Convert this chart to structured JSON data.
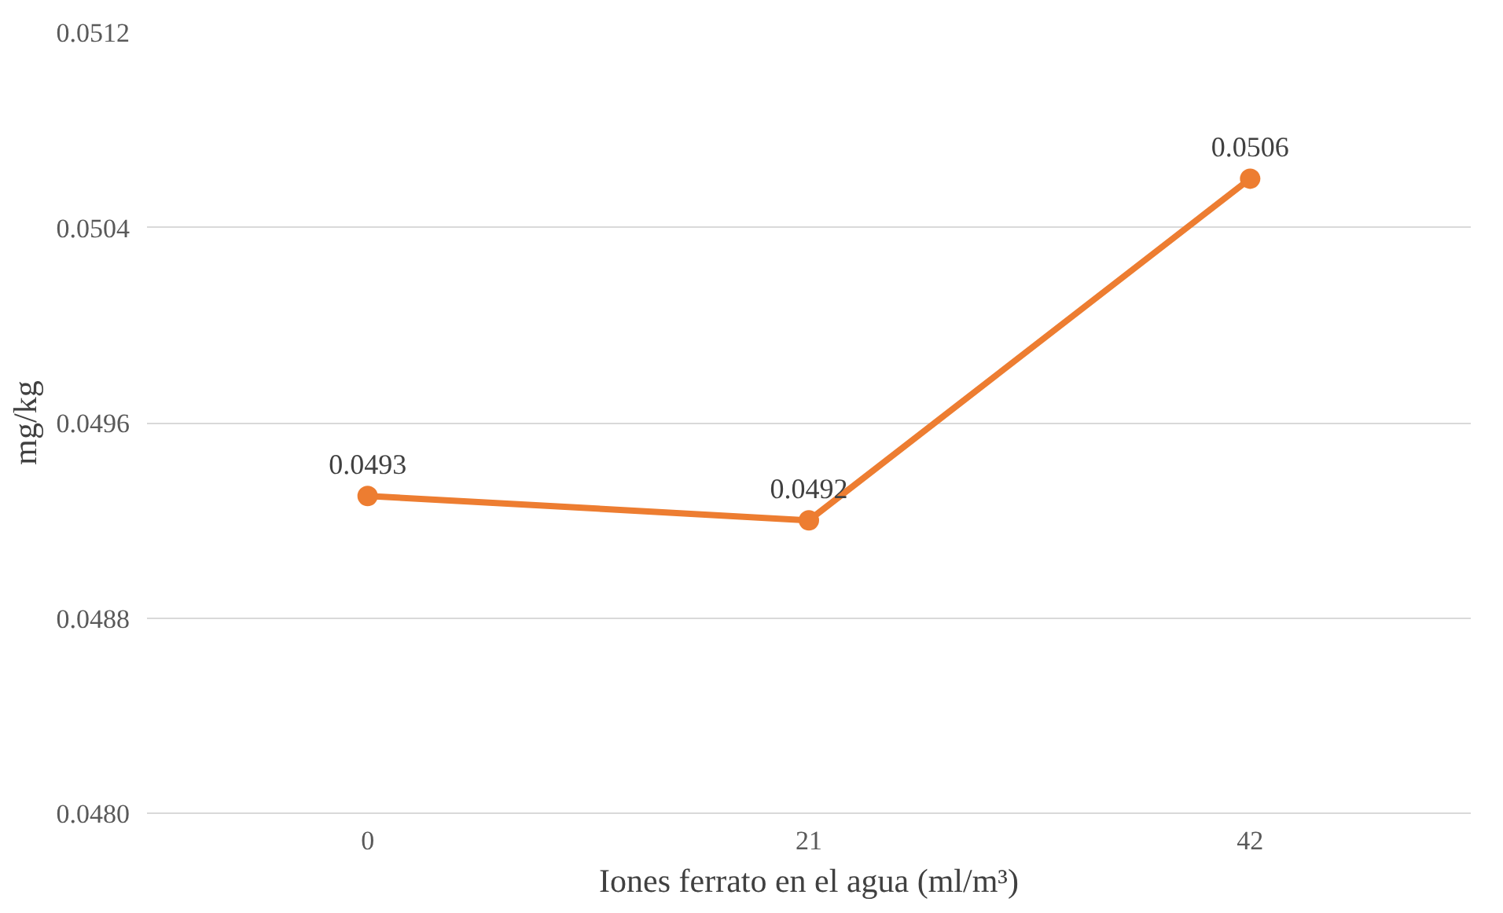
{
  "chart_data": {
    "type": "line",
    "xlabel": "Iones ferrato en el agua (ml/m³)",
    "ylabel": "mg/kg",
    "categories": [
      "0",
      "21",
      "42"
    ],
    "series": [
      {
        "color": "#ed7d31",
        "values": [
          0.0493,
          0.0492,
          0.0506
        ]
      }
    ],
    "ylim": [
      0.048,
      0.0512
    ],
    "yticks": [
      {
        "value": 0.048,
        "label": "0.0480"
      },
      0.0488,
      0.0496,
      0.0504,
      0.0512
    ],
    "grid": "y",
    "marker": "circle",
    "line_style": "solid",
    "data_labels": true
  }
}
